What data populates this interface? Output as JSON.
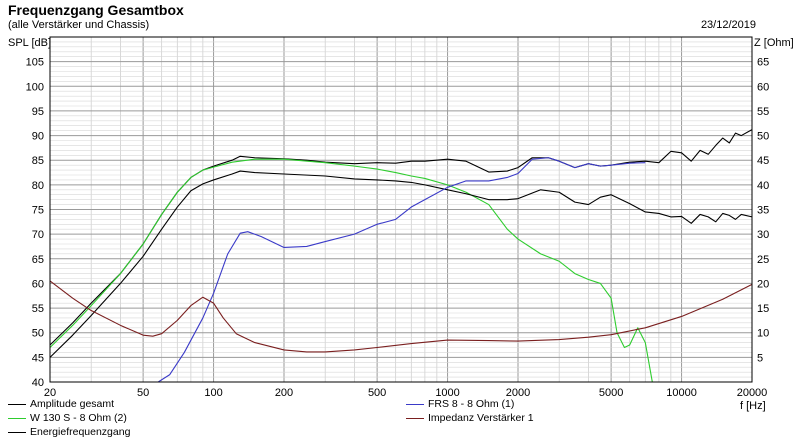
{
  "header": {
    "title": "Frequenzgang Gesamtbox",
    "subtitle": "(alle Verstärker und Chassis)",
    "date": "23/12/2019"
  },
  "chart_data": {
    "type": "line",
    "xlabel": "f [Hz]",
    "ylabel_left": "SPL [dB]",
    "ylabel_right": "Z [Ohm]",
    "x_scale": "log",
    "xlim": [
      20,
      20000
    ],
    "ylim_left": [
      40,
      110
    ],
    "ylim_right": [
      0,
      70
    ],
    "grid": true,
    "x_ticks": [
      20,
      50,
      100,
      200,
      500,
      1000,
      2000,
      5000,
      10000,
      20000
    ],
    "x_tick_labels": [
      "20",
      "50",
      "100",
      "200",
      "500",
      "1000",
      "2000",
      "5000",
      "10000",
      "20000"
    ],
    "y_left_ticks": [
      40,
      45,
      50,
      55,
      60,
      65,
      70,
      75,
      80,
      85,
      90,
      95,
      100,
      105
    ],
    "y_left_tick_labels": [
      "40",
      "45",
      "50",
      "55",
      "60",
      "65",
      "70",
      "75",
      "80",
      "85",
      "90",
      "95",
      "100",
      "105"
    ],
    "y_right_ticks": [
      5,
      10,
      15,
      20,
      25,
      30,
      35,
      40,
      45,
      50,
      55,
      60,
      65
    ],
    "y_right_tick_labels": [
      "5",
      "10",
      "15",
      "20",
      "25",
      "30",
      "35",
      "40",
      "45",
      "50",
      "55",
      "60",
      "65"
    ],
    "legend_placement": "bottom",
    "series": [
      {
        "name": "Amplitude gesamt",
        "color": "#000000",
        "axis": "left",
        "points": [
          [
            20,
            47.5
          ],
          [
            25,
            52
          ],
          [
            30,
            56
          ],
          [
            40,
            62
          ],
          [
            50,
            68
          ],
          [
            60,
            74
          ],
          [
            70,
            78.5
          ],
          [
            80,
            81.5
          ],
          [
            90,
            83
          ],
          [
            100,
            83.8
          ],
          [
            120,
            85
          ],
          [
            130,
            85.8
          ],
          [
            150,
            85.5
          ],
          [
            200,
            85.3
          ],
          [
            250,
            85
          ],
          [
            300,
            84.6
          ],
          [
            400,
            84.3
          ],
          [
            500,
            84.5
          ],
          [
            600,
            84.4
          ],
          [
            700,
            84.8
          ],
          [
            800,
            84.8
          ],
          [
            1000,
            85.2
          ],
          [
            1200,
            84.8
          ],
          [
            1500,
            82.6
          ],
          [
            1800,
            82.8
          ],
          [
            2000,
            83.5
          ],
          [
            2300,
            85.5
          ],
          [
            2700,
            85.5
          ],
          [
            3000,
            84.8
          ],
          [
            3500,
            83.5
          ],
          [
            4000,
            84.3
          ],
          [
            4500,
            83.8
          ],
          [
            5000,
            84
          ],
          [
            6000,
            84.6
          ],
          [
            7000,
            84.8
          ],
          [
            8000,
            84.5
          ],
          [
            9000,
            86.8
          ],
          [
            10000,
            86.5
          ],
          [
            11000,
            84.8
          ],
          [
            12000,
            87
          ],
          [
            13000,
            86.2
          ],
          [
            14000,
            88
          ],
          [
            15000,
            89.5
          ],
          [
            16000,
            88.5
          ],
          [
            17000,
            90.5
          ],
          [
            18000,
            90
          ],
          [
            20000,
            91.2
          ]
        ]
      },
      {
        "name": "W 130 S - 8 Ohm (2)",
        "color": "#2ecc2e",
        "axis": "left",
        "points": [
          [
            20,
            47
          ],
          [
            25,
            51.5
          ],
          [
            30,
            55.5
          ],
          [
            40,
            62
          ],
          [
            50,
            68
          ],
          [
            60,
            74
          ],
          [
            70,
            78.5
          ],
          [
            80,
            81.5
          ],
          [
            90,
            83
          ],
          [
            100,
            83.6
          ],
          [
            120,
            84.6
          ],
          [
            150,
            85.2
          ],
          [
            200,
            85.2
          ],
          [
            300,
            84.5
          ],
          [
            400,
            83.8
          ],
          [
            500,
            83.2
          ],
          [
            600,
            82.5
          ],
          [
            700,
            81.8
          ],
          [
            800,
            81.3
          ],
          [
            1000,
            80
          ],
          [
            1200,
            78.5
          ],
          [
            1500,
            76
          ],
          [
            1800,
            71
          ],
          [
            2000,
            69
          ],
          [
            2500,
            66
          ],
          [
            3000,
            64.5
          ],
          [
            3500,
            62
          ],
          [
            4000,
            60.8
          ],
          [
            4500,
            60
          ],
          [
            5000,
            57
          ],
          [
            5300,
            50
          ],
          [
            5700,
            47
          ],
          [
            6000,
            47.5
          ],
          [
            6500,
            51
          ],
          [
            7000,
            48
          ],
          [
            7500,
            40
          ],
          [
            20000,
            40
          ]
        ]
      },
      {
        "name": "Energiefrequenzgang",
        "color": "#000000",
        "axis": "left",
        "points": [
          [
            20,
            45
          ],
          [
            25,
            49.5
          ],
          [
            30,
            53.5
          ],
          [
            40,
            60
          ],
          [
            50,
            65.5
          ],
          [
            60,
            71
          ],
          [
            70,
            75.5
          ],
          [
            80,
            78.8
          ],
          [
            90,
            80.2
          ],
          [
            100,
            81
          ],
          [
            120,
            82.2
          ],
          [
            130,
            82.8
          ],
          [
            150,
            82.5
          ],
          [
            200,
            82.2
          ],
          [
            300,
            81.8
          ],
          [
            400,
            81.2
          ],
          [
            500,
            81
          ],
          [
            600,
            80.8
          ],
          [
            700,
            80.5
          ],
          [
            800,
            80
          ],
          [
            1000,
            79
          ],
          [
            1200,
            78.2
          ],
          [
            1500,
            77
          ],
          [
            1800,
            77
          ],
          [
            2000,
            77.2
          ],
          [
            2500,
            79
          ],
          [
            3000,
            78.5
          ],
          [
            3500,
            76.5
          ],
          [
            4000,
            76
          ],
          [
            4500,
            77.5
          ],
          [
            5000,
            78
          ],
          [
            6000,
            76.2
          ],
          [
            7000,
            74.5
          ],
          [
            8000,
            74.2
          ],
          [
            9000,
            73.5
          ],
          [
            10000,
            73.6
          ],
          [
            11000,
            72.2
          ],
          [
            12000,
            74
          ],
          [
            13000,
            73.5
          ],
          [
            14000,
            72.5
          ],
          [
            15000,
            74.2
          ],
          [
            16000,
            73.8
          ],
          [
            17000,
            73
          ],
          [
            18000,
            74
          ],
          [
            20000,
            73.5
          ]
        ]
      },
      {
        "name": "FRS 8 - 8 Ohm (1)",
        "color": "#3a3ac8",
        "axis": "left",
        "points": [
          [
            20,
            40
          ],
          [
            58,
            40
          ],
          [
            65,
            41.5
          ],
          [
            75,
            46
          ],
          [
            90,
            53
          ],
          [
            100,
            58
          ],
          [
            115,
            66
          ],
          [
            130,
            70.2
          ],
          [
            140,
            70.5
          ],
          [
            160,
            69.5
          ],
          [
            200,
            67.3
          ],
          [
            250,
            67.5
          ],
          [
            300,
            68.5
          ],
          [
            400,
            70
          ],
          [
            500,
            72
          ],
          [
            600,
            73
          ],
          [
            700,
            75.5
          ],
          [
            800,
            77
          ],
          [
            1000,
            79.5
          ],
          [
            1200,
            80.8
          ],
          [
            1500,
            80.8
          ],
          [
            1800,
            81.5
          ],
          [
            2000,
            82.3
          ],
          [
            2300,
            85.2
          ],
          [
            2700,
            85.5
          ],
          [
            3000,
            84.8
          ],
          [
            3500,
            83.5
          ],
          [
            4000,
            84.3
          ],
          [
            4500,
            83.8
          ],
          [
            5000,
            84
          ],
          [
            6000,
            84.4
          ],
          [
            7000,
            84.5
          ]
        ]
      },
      {
        "name": "Impedanz Verstärker 1",
        "color": "#7a1f1f",
        "axis": "right",
        "points": [
          [
            20,
            20.5
          ],
          [
            25,
            17
          ],
          [
            30,
            14.5
          ],
          [
            40,
            11.5
          ],
          [
            50,
            9.5
          ],
          [
            55,
            9.3
          ],
          [
            60,
            9.8
          ],
          [
            70,
            12.5
          ],
          [
            80,
            15.5
          ],
          [
            90,
            17.2
          ],
          [
            100,
            16
          ],
          [
            110,
            13
          ],
          [
            125,
            9.8
          ],
          [
            150,
            8
          ],
          [
            200,
            6.5
          ],
          [
            250,
            6.1
          ],
          [
            300,
            6.1
          ],
          [
            400,
            6.5
          ],
          [
            500,
            7
          ],
          [
            700,
            7.8
          ],
          [
            1000,
            8.5
          ],
          [
            1500,
            8.4
          ],
          [
            2000,
            8.3
          ],
          [
            3000,
            8.6
          ],
          [
            4000,
            9.1
          ],
          [
            5000,
            9.6
          ],
          [
            7000,
            11
          ],
          [
            10000,
            13.3
          ],
          [
            15000,
            16.8
          ],
          [
            20000,
            19.8
          ]
        ]
      }
    ]
  }
}
